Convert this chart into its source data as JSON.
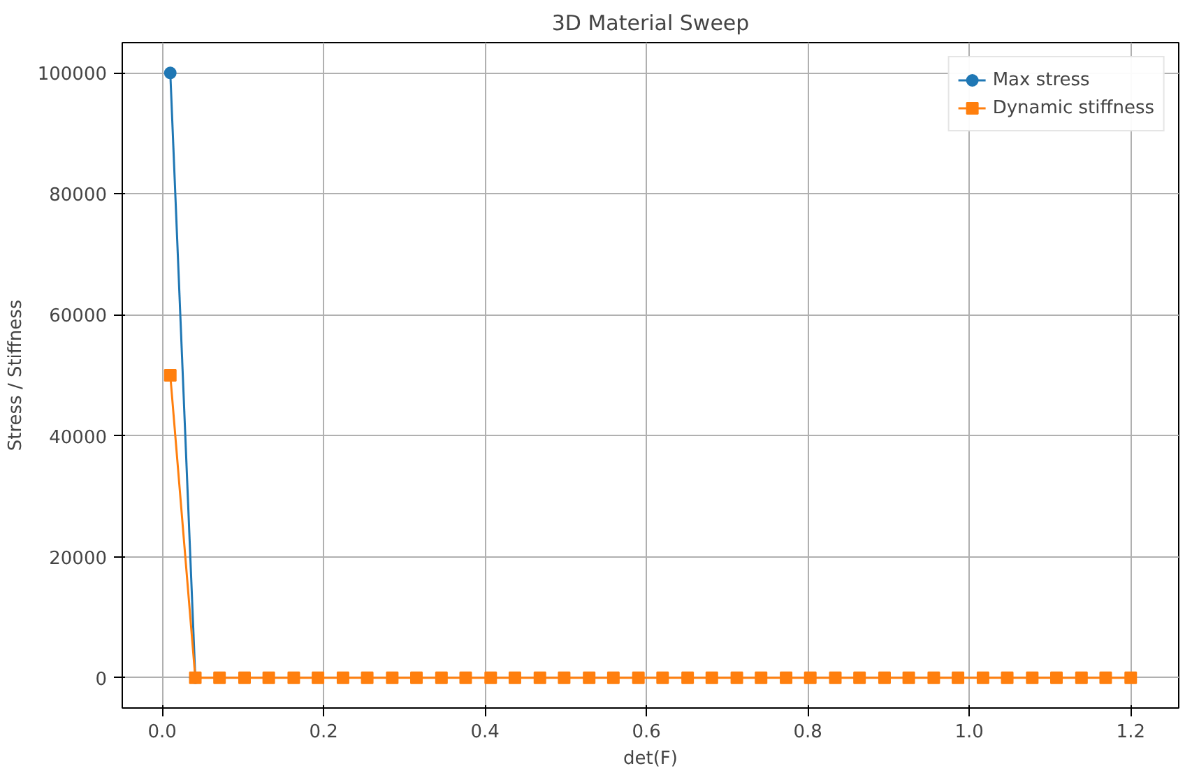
{
  "chart_data": {
    "type": "line",
    "title": "3D Material Sweep",
    "xlabel": "det(F)",
    "ylabel": "Stress / Stiffness",
    "x": [
      0.01,
      0.041,
      0.071,
      0.102,
      0.132,
      0.163,
      0.193,
      0.224,
      0.254,
      0.285,
      0.315,
      0.346,
      0.376,
      0.407,
      0.437,
      0.468,
      0.498,
      0.529,
      0.559,
      0.59,
      0.62,
      0.651,
      0.681,
      0.712,
      0.742,
      0.773,
      0.803,
      0.834,
      0.864,
      0.895,
      0.925,
      0.956,
      0.986,
      1.017,
      1.047,
      1.078,
      1.108,
      1.139,
      1.169,
      1.2
    ],
    "series": [
      {
        "name": "Max stress",
        "color": "#1f77b4",
        "marker": "circle",
        "values": [
          100000,
          0,
          null,
          null,
          null,
          null,
          null,
          null,
          null,
          null,
          null,
          null,
          null,
          null,
          null,
          null,
          null,
          null,
          null,
          null,
          null,
          null,
          null,
          null,
          null,
          null,
          null,
          null,
          null,
          null,
          null,
          null,
          null,
          null,
          null,
          null,
          null,
          null,
          null,
          null
        ]
      },
      {
        "name": "Dynamic stiffness",
        "color": "#ff7f0e",
        "marker": "square",
        "values": [
          50000,
          0,
          0,
          0,
          0,
          0,
          0,
          0,
          0,
          0,
          0,
          0,
          0,
          0,
          0,
          0,
          0,
          0,
          0,
          0,
          0,
          0,
          0,
          0,
          0,
          0,
          0,
          0,
          0,
          0,
          0,
          0,
          0,
          0,
          0,
          0,
          0,
          0,
          0,
          0
        ]
      }
    ],
    "xlim": [
      -0.0495,
      1.2595
    ],
    "xticks": [
      {
        "value": 0,
        "label": "0.0"
      },
      0.2,
      0.4,
      0.6,
      0.8,
      {
        "value": 1,
        "label": "1.0"
      },
      1.2
    ],
    "ylim": [
      -5000,
      105000
    ],
    "yticks": [
      0,
      20000,
      40000,
      60000,
      80000,
      100000
    ],
    "grid": true,
    "legend": "top right",
    "line_style": "solid"
  }
}
